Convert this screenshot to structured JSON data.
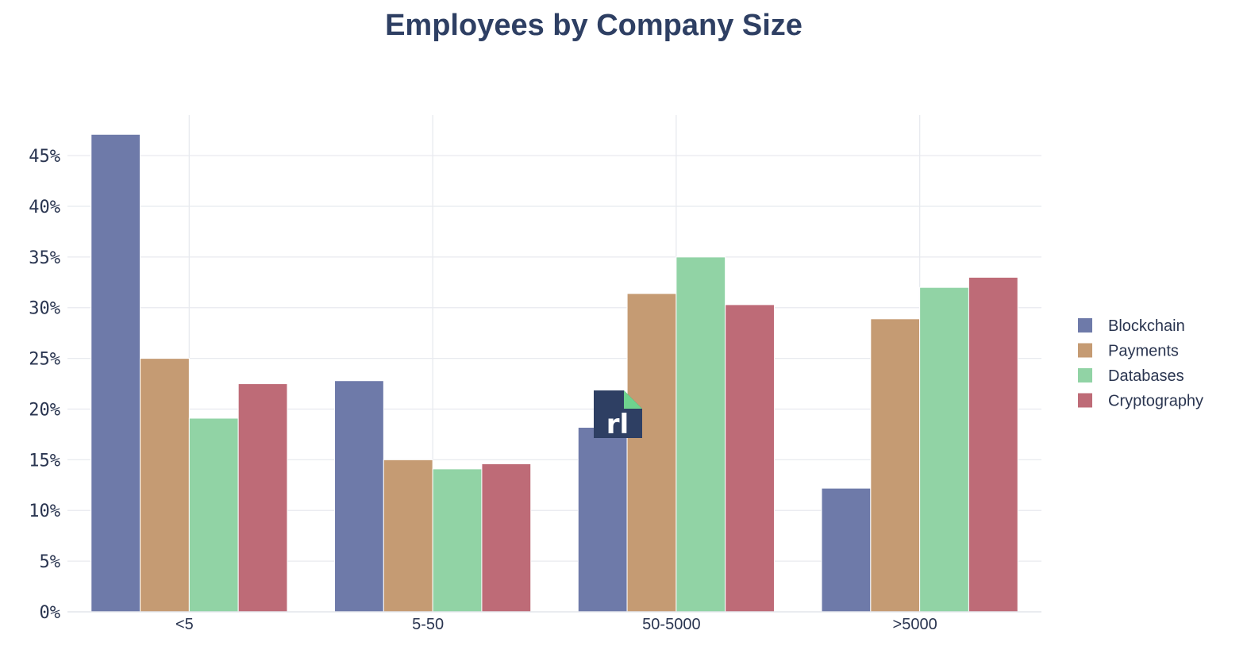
{
  "chart_data": {
    "type": "bar",
    "title": "Employees by Company Size",
    "xlabel": "",
    "ylabel": "",
    "categories": [
      "<5",
      "5-50",
      "50-5000",
      ">5000"
    ],
    "series": [
      {
        "name": "Blockchain",
        "values": [
          47.1,
          22.8,
          18.2,
          12.2
        ],
        "color": "#6e7aa9"
      },
      {
        "name": "Payments",
        "values": [
          25.0,
          15.0,
          31.4,
          28.9
        ],
        "color": "#c59b73"
      },
      {
        "name": "Databases",
        "values": [
          19.1,
          14.1,
          35.0,
          32.0
        ],
        "color": "#91d3a5"
      },
      {
        "name": "Cryptography",
        "values": [
          22.5,
          14.6,
          30.3,
          33.0
        ],
        "color": "#be6b77"
      }
    ],
    "ylim": [
      0,
      49
    ],
    "yticks": [
      0,
      5,
      10,
      15,
      20,
      25,
      30,
      35,
      40,
      45
    ],
    "ytick_labels": [
      "0%",
      "5%",
      "10%",
      "15%",
      "20%",
      "25%",
      "30%",
      "35%",
      "40%",
      "45%"
    ],
    "grid": true,
    "legend_position": "right",
    "logo": {
      "text": "rl",
      "color": "#2e3f63",
      "accent": "#6ed38e"
    }
  }
}
